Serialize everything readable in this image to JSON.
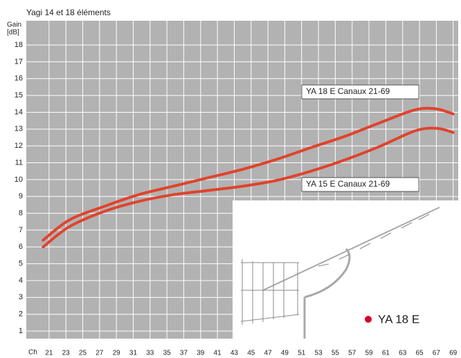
{
  "chart_data": {
    "type": "line",
    "title": "Yagi 14 et 18 éléments",
    "y_label_lines": [
      "Gain",
      "[dB]"
    ],
    "x_label": "Ch",
    "x": [
      20.3,
      23.4,
      27.5,
      31.6,
      35.7,
      39.8,
      43.9,
      48,
      52.1,
      56.3,
      60.4,
      64.5,
      67,
      69
    ],
    "series": [
      {
        "name": "YA 18 E  Canaux 21-69",
        "color": "#e0432d",
        "values": [
          6.4,
          7.6,
          8.4,
          9.1,
          9.6,
          10.1,
          10.6,
          11.2,
          11.9,
          12.6,
          13.4,
          14.15,
          14.2,
          13.9
        ]
      },
      {
        "name": "YA 15 E  Canaux 21-69",
        "color": "#e0432d",
        "values": [
          6.0,
          7.2,
          8.1,
          8.7,
          9.1,
          9.35,
          9.6,
          9.95,
          10.5,
          11.2,
          12.0,
          12.9,
          13.05,
          12.8
        ]
      }
    ],
    "inset_label": "YA 18 E",
    "inset_dot_color": "#d9002a",
    "xlim": [
      18.3,
      69.6
    ],
    "xticks": [
      21,
      23,
      25,
      27,
      29,
      31,
      33,
      35,
      37,
      39,
      41,
      43,
      45,
      47,
      49,
      51,
      53,
      55,
      57,
      59,
      61,
      63,
      65,
      67,
      69
    ],
    "ylim": [
      0.55,
      19.44
    ],
    "yticks": [
      1,
      2,
      3,
      4,
      5,
      6,
      7,
      8,
      9,
      10,
      11,
      12,
      13,
      14,
      15,
      16,
      17,
      18
    ],
    "grid": true
  }
}
